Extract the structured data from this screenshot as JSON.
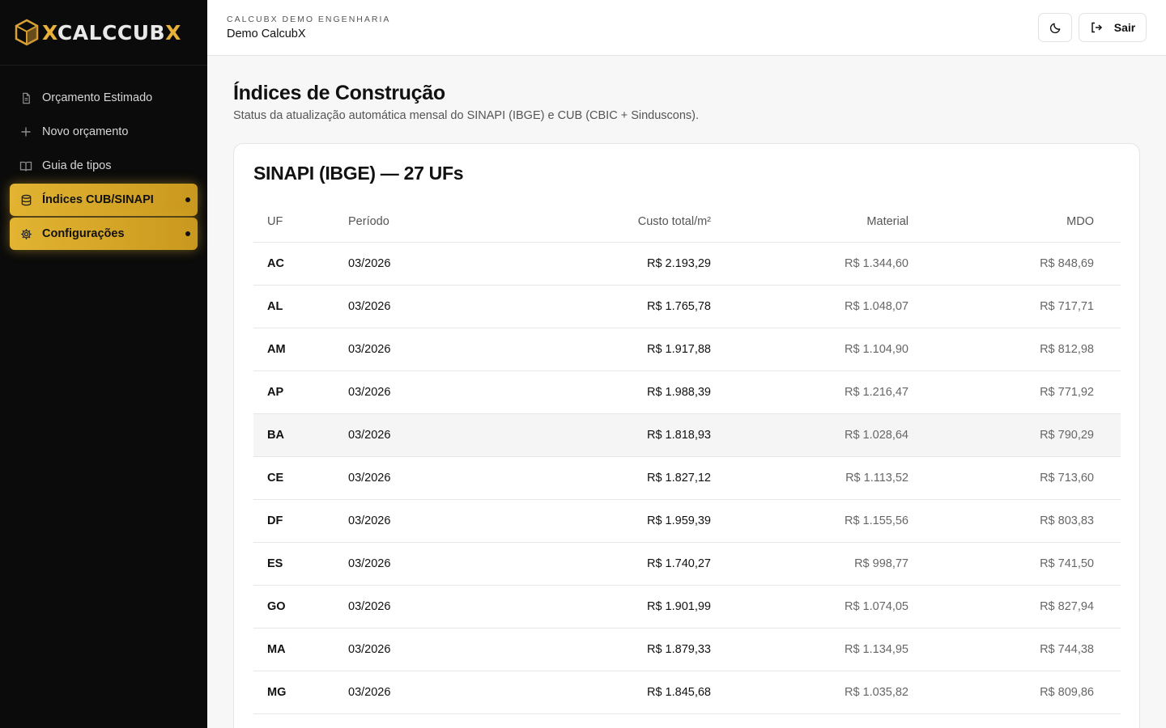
{
  "sidebar": {
    "logo": "CALCCUBX",
    "items": [
      {
        "label": "Orçamento Estimado",
        "icon": "document-icon",
        "active": false
      },
      {
        "label": "Novo orçamento",
        "icon": "plus-icon",
        "active": false
      },
      {
        "label": "Guia de tipos",
        "icon": "book-icon",
        "active": false
      },
      {
        "label": "Índices CUB/SINAPI",
        "icon": "database-icon",
        "active": true
      },
      {
        "label": "Configurações",
        "icon": "gear-icon",
        "active": true
      }
    ]
  },
  "header": {
    "company": "CALCUBX DEMO ENGENHARIA",
    "user": "Demo CalcubX",
    "theme_icon": "moon-icon",
    "logout_label": "Sair",
    "logout_icon": "logout-icon"
  },
  "main": {
    "title": "Índices de Construção",
    "subtitle": "Status da atualização automática mensal do SINAPI (IBGE) e CUB (CBIC + Sinduscons).",
    "card_title": "SINAPI (IBGE) — 27 UFs",
    "columns": [
      "UF",
      "Período",
      "Custo total/m²",
      "Material",
      "MDO"
    ],
    "rows": [
      [
        "AC",
        "03/2026",
        "R$ 2.193,29",
        "R$ 1.344,60",
        "R$ 848,69"
      ],
      [
        "AL",
        "03/2026",
        "R$ 1.765,78",
        "R$ 1.048,07",
        "R$ 717,71"
      ],
      [
        "AM",
        "03/2026",
        "R$ 1.917,88",
        "R$ 1.104,90",
        "R$ 812,98"
      ],
      [
        "AP",
        "03/2026",
        "R$ 1.988,39",
        "R$ 1.216,47",
        "R$ 771,92"
      ],
      [
        "BA",
        "03/2026",
        "R$ 1.818,93",
        "R$ 1.028,64",
        "R$ 790,29"
      ],
      [
        "CE",
        "03/2026",
        "R$ 1.827,12",
        "R$ 1.113,52",
        "R$ 713,60"
      ],
      [
        "DF",
        "03/2026",
        "R$ 1.959,39",
        "R$ 1.155,56",
        "R$ 803,83"
      ],
      [
        "ES",
        "03/2026",
        "R$ 1.740,27",
        "R$ 998,77",
        "R$ 741,50"
      ],
      [
        "GO",
        "03/2026",
        "R$ 1.901,99",
        "R$ 1.074,05",
        "R$ 827,94"
      ],
      [
        "MA",
        "03/2026",
        "R$ 1.879,33",
        "R$ 1.134,95",
        "R$ 744,38"
      ],
      [
        "MG",
        "03/2026",
        "R$ 1.845,68",
        "R$ 1.035,82",
        "R$ 809,86"
      ]
    ],
    "highlight_row": 4
  },
  "colors": {
    "accent": "#e2b432",
    "sidebar_bg": "#0b0b0b"
  }
}
